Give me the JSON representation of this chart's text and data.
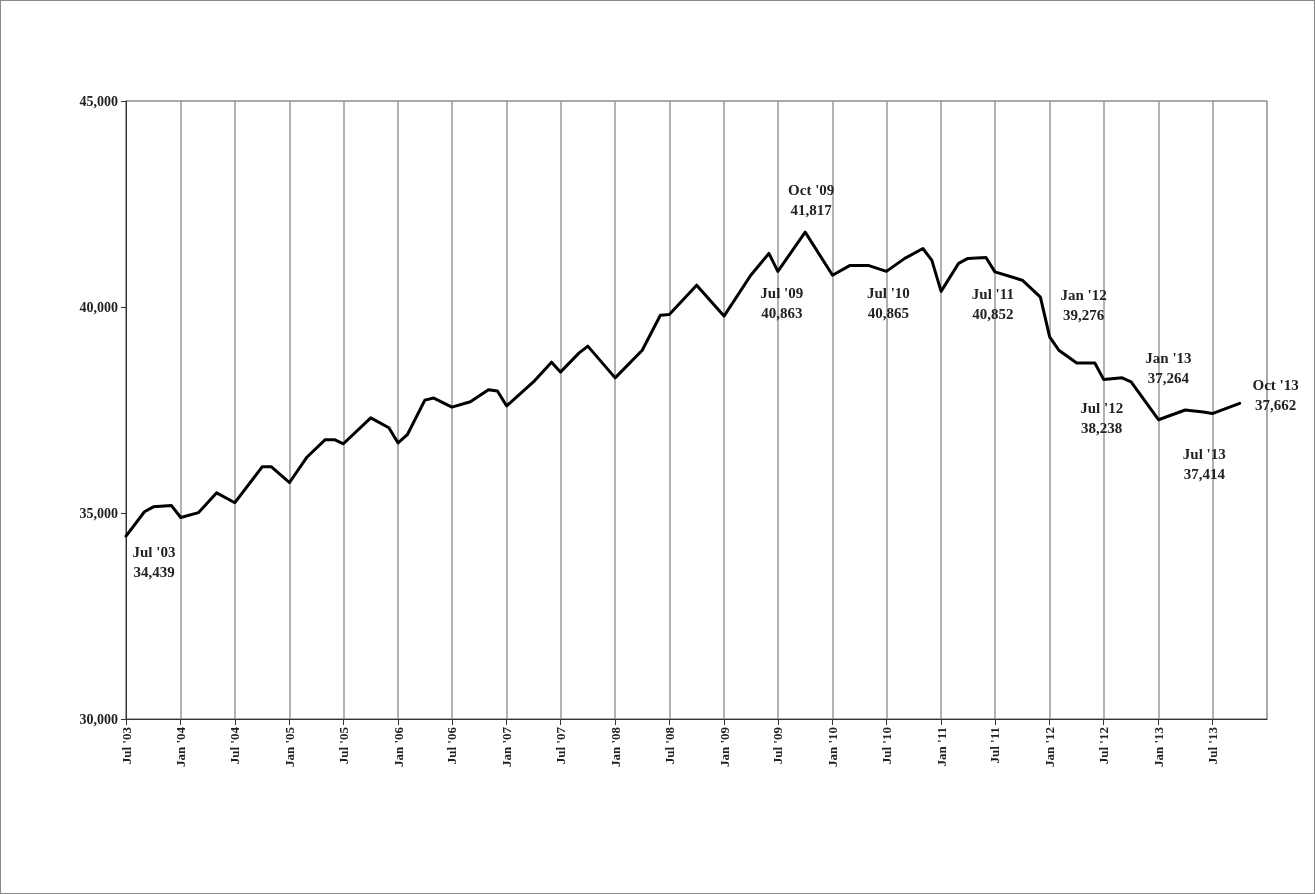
{
  "chart_data": {
    "type": "line",
    "x": [
      "2003-07",
      "2003-09",
      "2003-10",
      "2003-12",
      "2004-01",
      "2004-03",
      "2004-05",
      "2004-07",
      "2004-10",
      "2004-11",
      "2005-01",
      "2005-03",
      "2005-05",
      "2005-06",
      "2005-07",
      "2005-10",
      "2005-12",
      "2006-01",
      "2006-02",
      "2006-04",
      "2006-05",
      "2006-07",
      "2006-09",
      "2006-11",
      "2006-12",
      "2007-01",
      "2007-04",
      "2007-06",
      "2007-07",
      "2007-09",
      "2007-10",
      "2008-01",
      "2008-04",
      "2008-06",
      "2008-07",
      "2008-10",
      "2009-01",
      "2009-04",
      "2009-06",
      "2009-07",
      "2009-10",
      "2010-01",
      "2010-03",
      "2010-05",
      "2010-07",
      "2010-09",
      "2010-11",
      "2010-12",
      "2011-01",
      "2011-03",
      "2011-04",
      "2011-06",
      "2011-07",
      "2011-10",
      "2011-12",
      "2012-01",
      "2012-02",
      "2012-04",
      "2012-06",
      "2012-07",
      "2012-09",
      "2012-10",
      "2013-01",
      "2013-04",
      "2013-06",
      "2013-07",
      "2013-10"
    ],
    "series": [
      {
        "color": "#000000",
        "values": [
          34439,
          35030,
          35150,
          35180,
          34890,
          35010,
          35490,
          35250,
          36120,
          36120,
          35740,
          36360,
          36780,
          36780,
          36680,
          37310,
          37070,
          36700,
          36900,
          37740,
          37790,
          37570,
          37700,
          37990,
          37960,
          37600,
          38180,
          38660,
          38420,
          38880,
          39050,
          38280,
          38950,
          39800,
          39820,
          40530,
          39780,
          40770,
          41300,
          40863,
          41817,
          40770,
          41010,
          41010,
          40865,
          41180,
          41420,
          41130,
          40380,
          41060,
          41180,
          41200,
          40852,
          40650,
          40240,
          39276,
          38950,
          38640,
          38640,
          38238,
          38280,
          38180,
          37264,
          37500,
          37450,
          37414,
          37662
        ]
      }
    ],
    "xlim": [
      "2003-07",
      "2014-01"
    ],
    "xticks": [
      {
        "value": "2003-07",
        "label": "Jul '03"
      },
      {
        "value": "2004-01",
        "label": "Jan '04"
      },
      {
        "value": "2004-07",
        "label": "Jul '04"
      },
      {
        "value": "2005-01",
        "label": "Jan '05"
      },
      {
        "value": "2005-07",
        "label": "Jul '05"
      },
      {
        "value": "2006-01",
        "label": "Jan '06"
      },
      {
        "value": "2006-07",
        "label": "Jul '06"
      },
      {
        "value": "2007-01",
        "label": "Jan '07"
      },
      {
        "value": "2007-07",
        "label": "Jul '07"
      },
      {
        "value": "2008-01",
        "label": "Jan '08"
      },
      {
        "value": "2008-07",
        "label": "Jul '08"
      },
      {
        "value": "2009-01",
        "label": "Jan '09"
      },
      {
        "value": "2009-07",
        "label": "Jul '09"
      },
      {
        "value": "2010-01",
        "label": "Jan '10"
      },
      {
        "value": "2010-07",
        "label": "Jul '10"
      },
      {
        "value": "2011-01",
        "label": "Jan '11"
      },
      {
        "value": "2011-07",
        "label": "Jul '11"
      },
      {
        "value": "2012-01",
        "label": "Jan '12"
      },
      {
        "value": "2012-07",
        "label": "Jul '12"
      },
      {
        "value": "2013-01",
        "label": "Jan '13"
      },
      {
        "value": "2013-07",
        "label": "Jul '13"
      }
    ],
    "ylim": [
      30000,
      45000
    ],
    "yticks": [
      {
        "value": 30000,
        "label": "30,000"
      },
      {
        "value": 35000,
        "label": "35,000"
      },
      {
        "value": 40000,
        "label": "40,000"
      },
      {
        "value": 45000,
        "label": "45,000"
      }
    ],
    "grid": "x",
    "marker": "none",
    "line_style": "solid",
    "annotations": [
      {
        "text": "Jul '03\n34,439",
        "x": "2003-07",
        "y": 34439
      },
      {
        "text": "Oct '09\n41,817",
        "x": "2009-10",
        "y": 41817
      },
      {
        "text": "Jul '09\n40,863",
        "x": "2009-07",
        "y": 40863
      },
      {
        "text": "Jul '10\n40,865",
        "x": "2010-07",
        "y": 40865
      },
      {
        "text": "Jul '11\n40,852",
        "x": "2011-07",
        "y": 40852
      },
      {
        "text": "Jan '12\n39,276",
        "x": "2012-01",
        "y": 39276
      },
      {
        "text": "Jul '12\n38,238",
        "x": "2012-07",
        "y": 38238
      },
      {
        "text": "Jan '13\n37,264",
        "x": "2013-01",
        "y": 37264
      },
      {
        "text": "Jul '13\n37,414",
        "x": "2013-07",
        "y": 37414
      },
      {
        "text": "Oct '13\n37,662",
        "x": "2013-10",
        "y": 37662
      }
    ]
  }
}
